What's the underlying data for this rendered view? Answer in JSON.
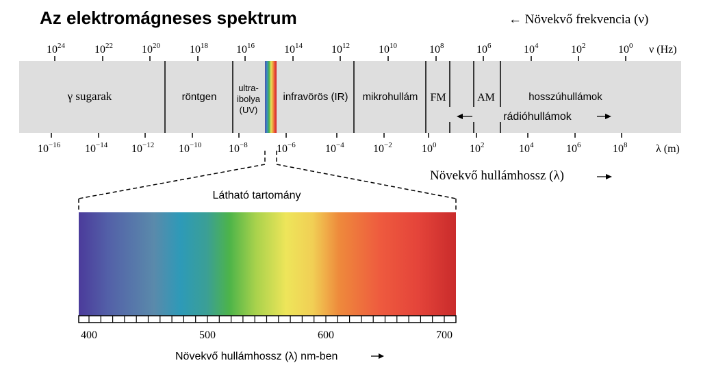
{
  "title": "Az elektromágneses spektrum",
  "freq_note": "← Növekvő frekvencia (ν)",
  "freq_axis": {
    "unit": "ν (Hz)",
    "ticks": [
      {
        "base": "10",
        "exp": "24"
      },
      {
        "base": "10",
        "exp": "22"
      },
      {
        "base": "10",
        "exp": "20"
      },
      {
        "base": "10",
        "exp": "18"
      },
      {
        "base": "10",
        "exp": "16"
      },
      {
        "base": "10",
        "exp": "14"
      },
      {
        "base": "10",
        "exp": "12"
      },
      {
        "base": "10",
        "exp": "10"
      },
      {
        "base": "10",
        "exp": "8"
      },
      {
        "base": "10",
        "exp": "6"
      },
      {
        "base": "10",
        "exp": "4"
      },
      {
        "base": "10",
        "exp": "2"
      },
      {
        "base": "10",
        "exp": "0"
      }
    ]
  },
  "wave_axis": {
    "unit": "λ (m)",
    "ticks": [
      {
        "base": "10",
        "exp": "−16"
      },
      {
        "base": "10",
        "exp": "−14"
      },
      {
        "base": "10",
        "exp": "−12"
      },
      {
        "base": "10",
        "exp": "−10"
      },
      {
        "base": "10",
        "exp": "−8"
      },
      {
        "base": "10",
        "exp": "−6"
      },
      {
        "base": "10",
        "exp": "−4"
      },
      {
        "base": "10",
        "exp": "−2"
      },
      {
        "base": "10",
        "exp": "0"
      },
      {
        "base": "10",
        "exp": "2"
      },
      {
        "base": "10",
        "exp": "4"
      },
      {
        "base": "10",
        "exp": "6"
      },
      {
        "base": "10",
        "exp": "8"
      }
    ]
  },
  "regions": {
    "gamma": "γ sugarak",
    "xray": "röntgen",
    "uv_1": "ultra-",
    "uv_2": "ibolya",
    "uv_3": "(UV)",
    "ir": "infravörös (IR)",
    "micro": "mikrohullám",
    "fm": "FM",
    "am": "AM",
    "long": "hosszúhullámok",
    "radio": "rádióhullámok"
  },
  "wave_note": "Növekvő hullámhossz (λ)",
  "visible": {
    "title": "Látható tartomány",
    "ticks": [
      "400",
      "500",
      "600",
      "700"
    ],
    "note": "Növekvő hullámhossz (λ) nm-ben"
  },
  "colors": {
    "band": "#dedede",
    "spectrum": [
      "#4b3b9b",
      "#5361a8",
      "#3f86b3",
      "#2d9ab8",
      "#3aa07f",
      "#6cbc3c",
      "#c9de4e",
      "#eee55a",
      "#f2c650",
      "#ee8a3c",
      "#ee5a3e",
      "#e4443a",
      "#c92b2b"
    ]
  }
}
